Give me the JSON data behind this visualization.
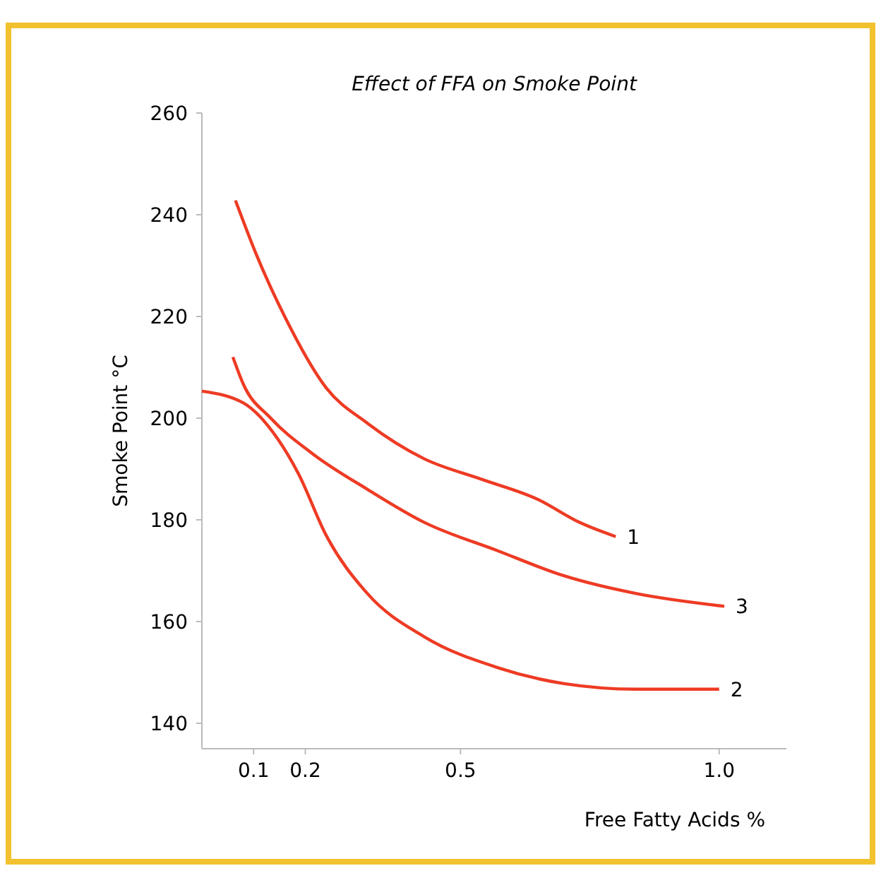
{
  "chart_data": {
    "type": "line",
    "title": "Effect of FFA on Smoke Point",
    "xlabel": "Free Fatty Acids %",
    "ylabel": "Smoke Point °C",
    "xlim": [
      0,
      1.13
    ],
    "xticks": [
      0.1,
      0.2,
      0.5,
      {
        "value": 1,
        "label": "1.0"
      }
    ],
    "ylim": [
      135,
      260
    ],
    "yticks": [
      140,
      160,
      180,
      200,
      220,
      240,
      260
    ],
    "grid": false,
    "marker": "none",
    "line_style": "solid",
    "series": [
      {
        "name": "1",
        "color": "#ee3b24",
        "x": [
          0.065,
          0.106,
          0.16,
          0.24,
          0.32,
          0.43,
          0.54,
          0.65,
          0.73,
          0.8
        ],
        "values": [
          242.8,
          232,
          220,
          206,
          199,
          192,
          188,
          184,
          179.5,
          176.7
        ]
      },
      {
        "name": "2",
        "color": "#ee3b24",
        "x": [
          0,
          0.08,
          0.146,
          0.187,
          0.24,
          0.32,
          0.43,
          0.57,
          0.7,
          0.84,
          1.0
        ],
        "values": [
          205.3,
          203,
          196,
          189,
          177,
          165.5,
          157,
          151,
          147.8,
          146.7,
          146.7
        ]
      },
      {
        "name": "3",
        "color": "#ee3b24",
        "x": [
          0.06,
          0.08,
          0.133,
          0.214,
          0.32,
          0.43,
          0.57,
          0.7,
          0.84,
          1.01
        ],
        "values": [
          212,
          206.7,
          200,
          193,
          186,
          179.5,
          174,
          169,
          165.5,
          163
        ]
      }
    ]
  }
}
